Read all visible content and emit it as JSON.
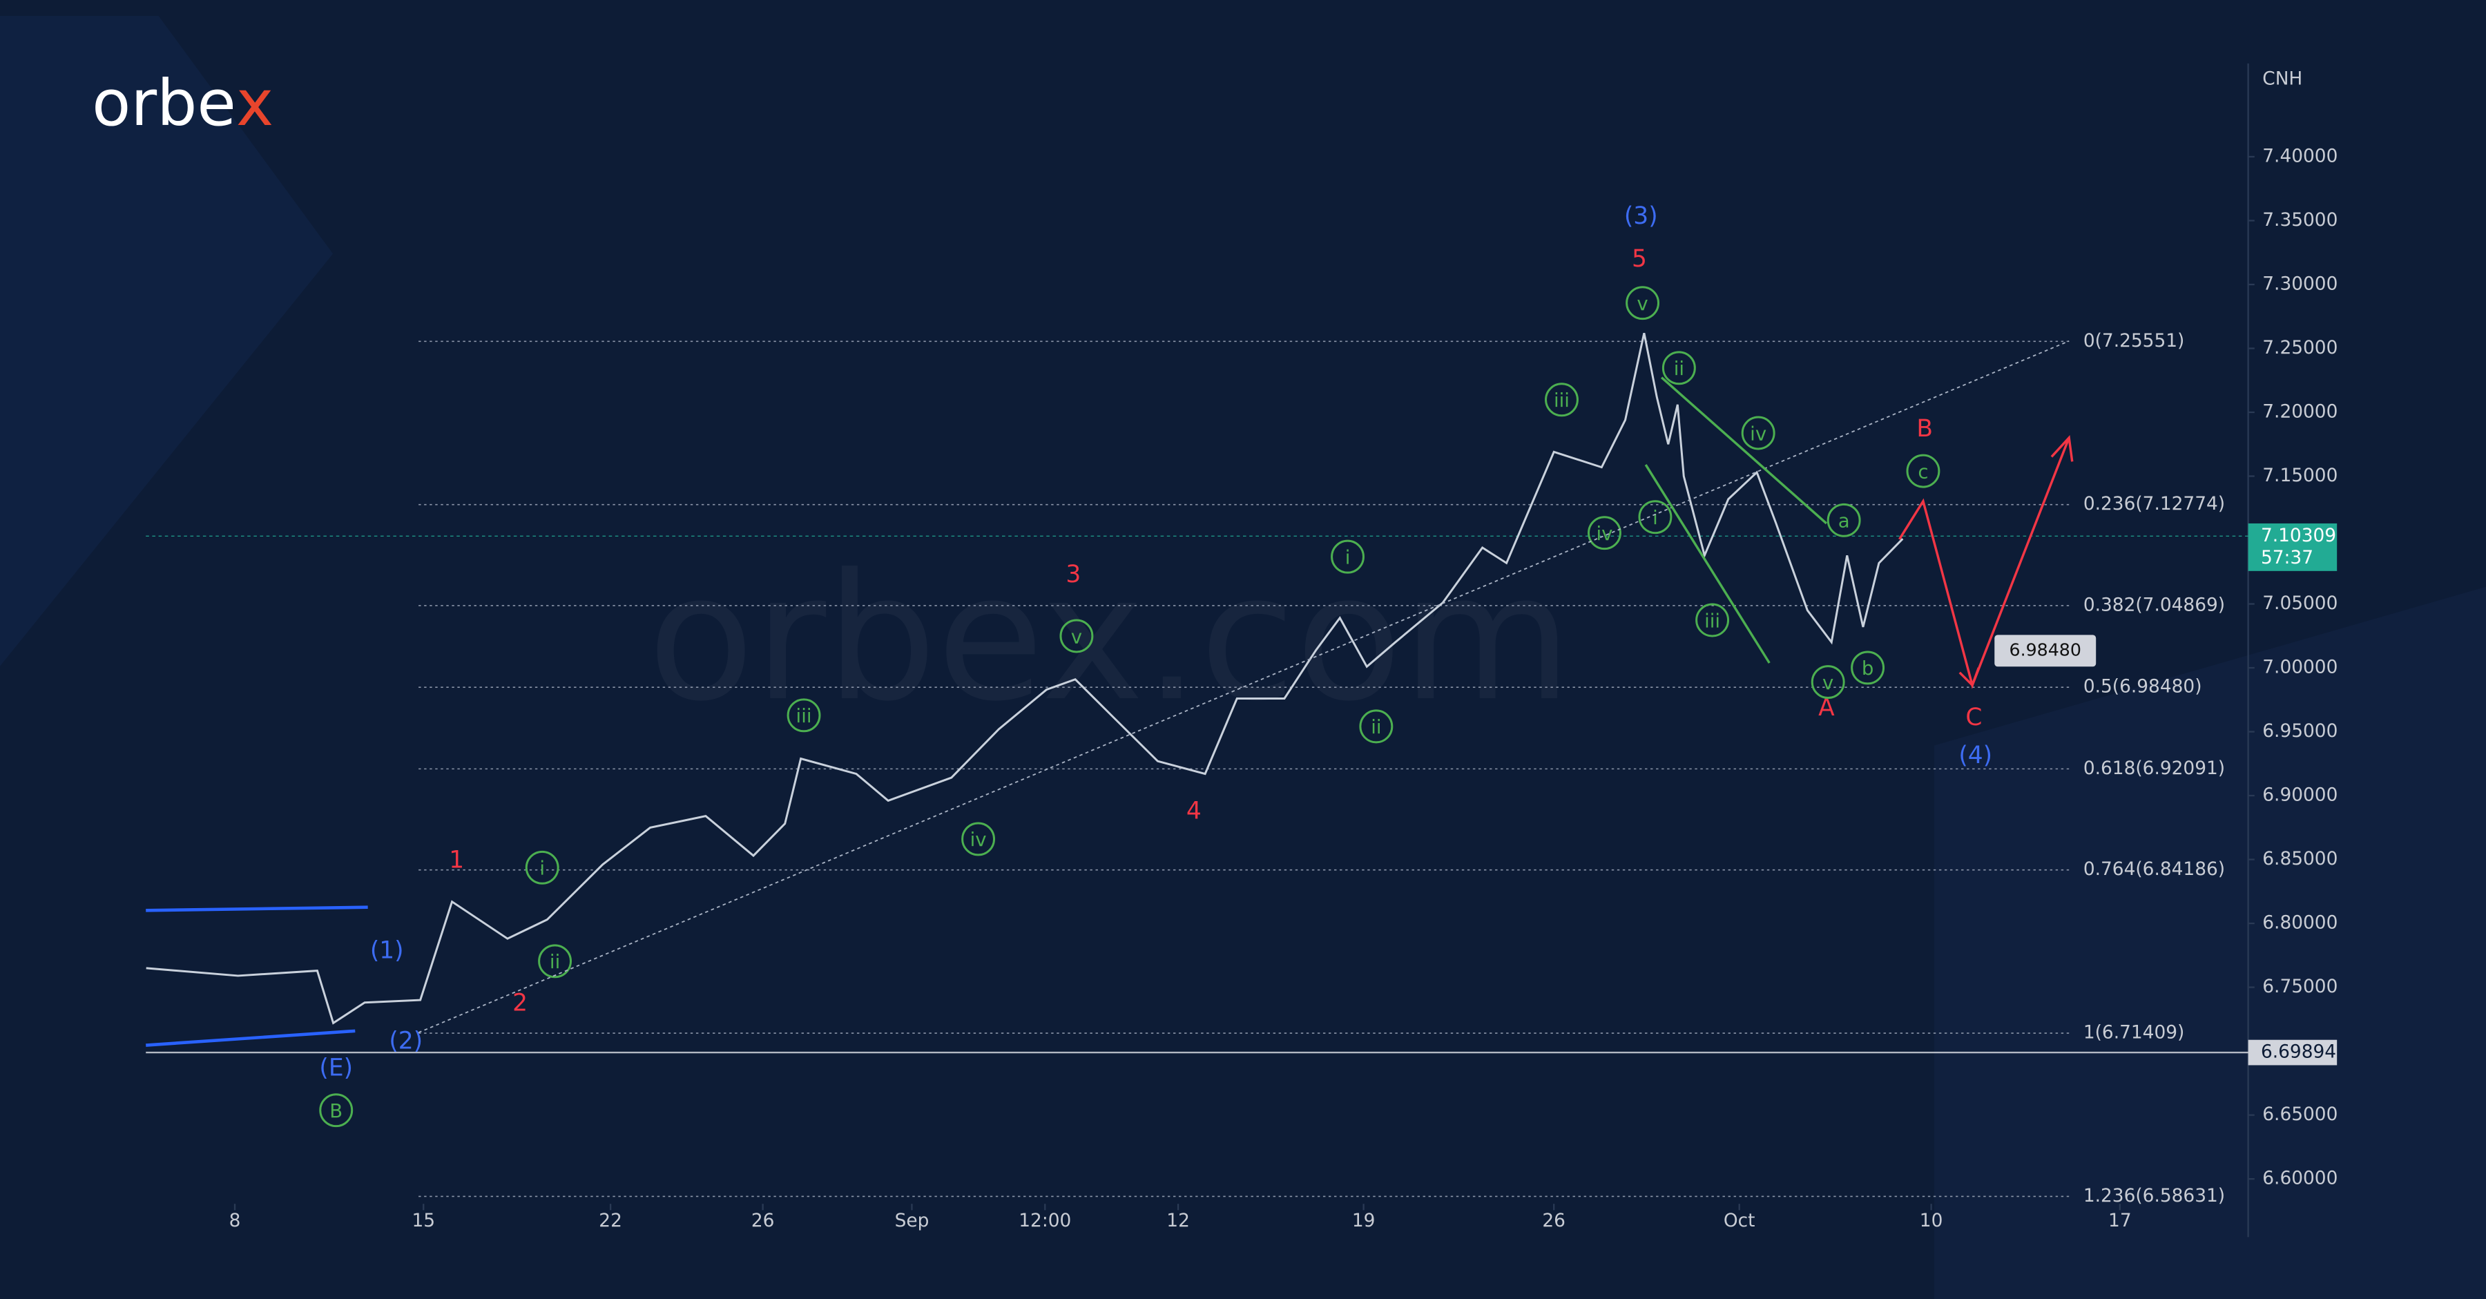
{
  "chart_data": {
    "type": "line",
    "logo_main": "orbe",
    "logo_accent": "x",
    "watermark": "orbex.com",
    "axis_label": "CNH",
    "color": "#c9d1dc",
    "x": [
      4.71,
      8.12,
      11.06,
      11.65,
      12.82,
      14.88,
      16.06,
      18.12,
      19.59,
      21.65,
      23.41,
      25.47,
      27.24,
      28.41,
      29.0,
      31.06,
      32.24,
      34.59,
      36.35,
      38.12,
      39.18,
      40.47,
      42.24,
      44.0,
      45.18,
      46.94,
      48.12,
      49.0,
      50.0,
      51.06,
      52.82,
      54.29,
      55.18,
      56.94,
      58.71,
      59.59,
      60.29,
      60.76,
      61.18,
      61.53,
      61.76,
      62.53,
      63.41,
      64.47,
      65.18,
      66.35,
      67.24,
      67.82,
      68.41,
      69.0,
      69.88
    ],
    "values": [
      6.765,
      6.759,
      6.763,
      6.722,
      6.738,
      6.74,
      6.817,
      6.788,
      6.803,
      6.846,
      6.875,
      6.884,
      6.853,
      6.878,
      6.929,
      6.917,
      6.896,
      6.914,
      6.952,
      6.983,
      6.991,
      6.964,
      6.927,
      6.917,
      6.976,
      6.976,
      7.014,
      7.039,
      7.001,
      7.02,
      7.051,
      7.094,
      7.082,
      7.169,
      7.157,
      7.194,
      7.262,
      7.212,
      7.175,
      7.206,
      7.15,
      7.088,
      7.132,
      7.153,
      7.113,
      7.045,
      7.02,
      7.088,
      7.032,
      7.082,
      7.101
    ],
    "xlim": [
      4.7,
      82.7
    ],
    "ylim": [
      6.583,
      7.473
    ],
    "xticks": [
      8,
      15,
      {
        "value": 21.94,
        "label": "22"
      },
      {
        "value": 27.59,
        "label": "26"
      },
      {
        "value": 33.12,
        "label": "Sep"
      },
      {
        "value": 38.06,
        "label": "12:00"
      },
      {
        "value": 43.0,
        "label": "12"
      },
      {
        "value": 49.88,
        "label": "19"
      },
      {
        "value": 56.94,
        "label": "26"
      },
      {
        "value": 63.82,
        "label": "Oct"
      },
      {
        "value": 70.94,
        "label": "10"
      },
      {
        "value": 77.94,
        "label": "17"
      }
    ],
    "yticks": [
      {
        "value": 6.6,
        "label": "6.60000"
      },
      {
        "value": 6.65,
        "label": "6.65000"
      },
      {
        "value": 6.7,
        "label": "6.70000"
      },
      {
        "value": 6.75,
        "label": "6.75000"
      },
      {
        "value": 6.8,
        "label": "6.80000"
      },
      {
        "value": 6.85,
        "label": "6.85000"
      },
      {
        "value": 6.9,
        "label": "6.90000"
      },
      {
        "value": 6.95,
        "label": "6.95000"
      },
      {
        "value": 7.0,
        "label": "7.00000"
      },
      {
        "value": 7.05,
        "label": "7.05000"
      },
      {
        "value": 7.1,
        "label": "7.10000"
      },
      {
        "value": 7.15,
        "label": "7.15000"
      },
      {
        "value": 7.2,
        "label": "7.20000"
      },
      {
        "value": 7.25,
        "label": "7.25000"
      },
      {
        "value": 7.3,
        "label": "7.30000"
      },
      {
        "value": 7.35,
        "label": "7.35000"
      },
      {
        "value": 7.4,
        "label": "7.40000"
      }
    ],
    "fib_levels": [
      {
        "value": 7.25551,
        "label": "0(7.25551)"
      },
      {
        "value": 7.12774,
        "label": "0.236(7.12774)"
      },
      {
        "value": 7.04869,
        "label": "0.382(7.04869)"
      },
      {
        "value": 6.9848,
        "label": "0.5(6.98480)"
      },
      {
        "value": 6.92091,
        "label": "0.618(6.92091)"
      },
      {
        "value": 6.84186,
        "label": "0.764(6.84186)"
      },
      {
        "value": 6.71409,
        "label": "1(6.71409)"
      },
      {
        "value": 6.58631,
        "label": "1.236(6.58631)"
      }
    ],
    "price_lines": [
      {
        "value": 7.10309,
        "label": "7.10309",
        "countdown": "57:37",
        "color": "#22ab94"
      },
      {
        "value": 6.69894,
        "label": "6.69894",
        "color": "#d1d4dc"
      }
    ],
    "target": {
      "value": 6.9848,
      "label": "6.98480"
    },
    "annotations": [
      {
        "text": "(3)",
        "color": "#3d6cf2"
      },
      {
        "text": "(1)",
        "color": "#3d6cf2"
      },
      {
        "text": "(2)",
        "color": "#3d6cf2"
      },
      {
        "text": "(E)",
        "color": "#3d6cf2"
      },
      {
        "text": "(4)",
        "color": "#3d6cf2"
      },
      {
        "text": "5",
        "color": "#f23645"
      },
      {
        "text": "3",
        "color": "#f23645"
      },
      {
        "text": "4",
        "color": "#f23645"
      },
      {
        "text": "1",
        "color": "#f23645"
      },
      {
        "text": "2",
        "color": "#f23645"
      },
      {
        "text": "B",
        "color": "#f23645"
      },
      {
        "text": "A",
        "color": "#f23645"
      },
      {
        "text": "C",
        "color": "#f23645"
      },
      {
        "text": "v",
        "color": "#4caf50"
      },
      {
        "text": "ii",
        "color": "#4caf50"
      },
      {
        "text": "iii",
        "color": "#4caf50"
      },
      {
        "text": "iv",
        "color": "#4caf50"
      },
      {
        "text": "c",
        "color": "#4caf50"
      },
      {
        "text": "a",
        "color": "#4caf50"
      },
      {
        "text": "i",
        "color": "#4caf50"
      },
      {
        "text": "iv",
        "color": "#4caf50"
      },
      {
        "text": "iii",
        "color": "#4caf50"
      },
      {
        "text": "v",
        "color": "#4caf50"
      },
      {
        "text": "b",
        "color": "#4caf50"
      },
      {
        "text": "i",
        "color": "#4caf50"
      },
      {
        "text": "ii",
        "color": "#4caf50"
      },
      {
        "text": "v",
        "color": "#4caf50"
      },
      {
        "text": "iii",
        "color": "#4caf50"
      },
      {
        "text": "iv",
        "color": "#4caf50"
      },
      {
        "text": "i",
        "color": "#4caf50"
      },
      {
        "text": "ii",
        "color": "#4caf50"
      },
      {
        "text": "B",
        "color": "#4caf50"
      }
    ]
  }
}
